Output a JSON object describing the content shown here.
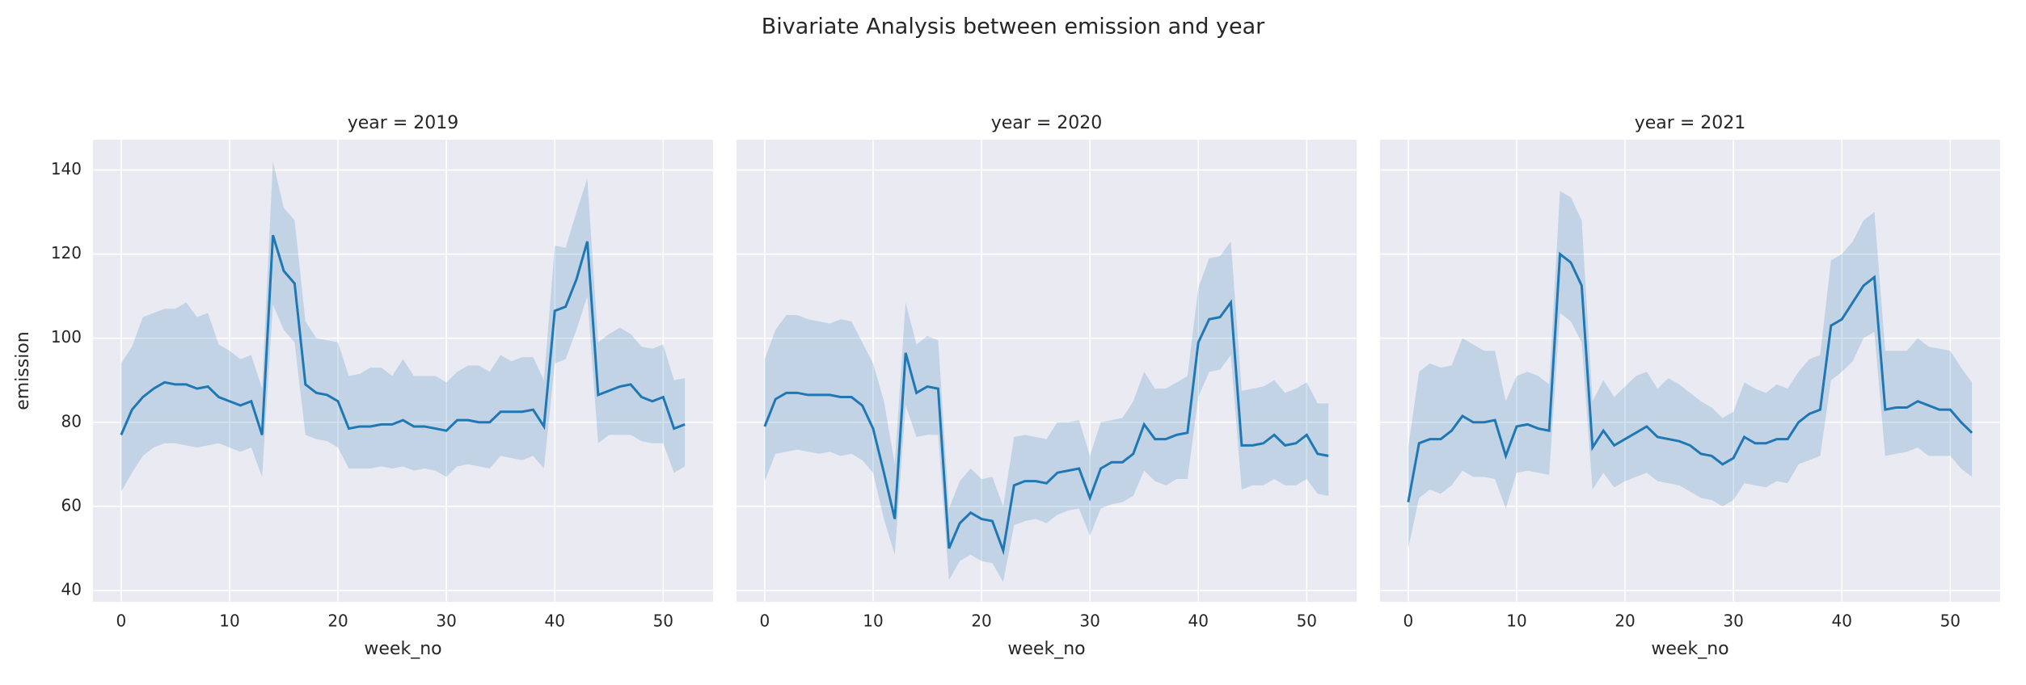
{
  "title": "Bivariate Analysis between emission and year",
  "sharey": true,
  "chart_data": [
    {
      "type": "line",
      "title": "year = 2019",
      "xlabel": "week_no",
      "ylabel": "emission",
      "color": "#1f77b4",
      "grid": true,
      "xlim": [
        -2.6,
        54.6
      ],
      "ylim": [
        37.3,
        147.2
      ],
      "xticks": [
        0,
        10,
        20,
        30,
        40,
        50
      ],
      "yticks": [
        40,
        60,
        80,
        100,
        120,
        140
      ],
      "x": [
        0,
        1,
        2,
        3,
        4,
        5,
        6,
        7,
        8,
        9,
        10,
        11,
        12,
        13,
        14,
        15,
        16,
        17,
        18,
        19,
        20,
        21,
        22,
        23,
        24,
        25,
        26,
        27,
        28,
        29,
        30,
        31,
        32,
        33,
        34,
        35,
        36,
        37,
        38,
        39,
        40,
        41,
        42,
        43,
        44,
        45,
        46,
        47,
        48,
        49,
        50,
        51,
        52
      ],
      "values": [
        77,
        83,
        86,
        88,
        89.5,
        89,
        89,
        88,
        88.5,
        86,
        85,
        84,
        85,
        77,
        124.5,
        116,
        113,
        89,
        87,
        86.5,
        85,
        78.5,
        79,
        79,
        79.5,
        79.5,
        80.5,
        79,
        79,
        78.5,
        78,
        80.5,
        80.5,
        80,
        80,
        82.5,
        82.5,
        82.5,
        83,
        79,
        106.5,
        107.5,
        114,
        123,
        86.5,
        87.5,
        88.5,
        89,
        86,
        85,
        86,
        78.5,
        79.5
      ],
      "lower": [
        63.5,
        68,
        72,
        74,
        75,
        75,
        74.5,
        74,
        74.5,
        75,
        74,
        73,
        74,
        67,
        108,
        102,
        99,
        77,
        76,
        75.5,
        74,
        69,
        69,
        69,
        69.5,
        69,
        69.5,
        68.5,
        69,
        68.5,
        67,
        69.5,
        70,
        69.5,
        69,
        72,
        71.5,
        71,
        72,
        69,
        94,
        95,
        102,
        110,
        75,
        77,
        77,
        77,
        75.5,
        75,
        75,
        68,
        69.5
      ],
      "upper": [
        94,
        98,
        105,
        106,
        107,
        107,
        108.5,
        105,
        106,
        98.5,
        97,
        95,
        96,
        88,
        142,
        131,
        128,
        104,
        100,
        99.5,
        99,
        91,
        91.5,
        93,
        93,
        91,
        95,
        91,
        91,
        91,
        89.5,
        92,
        93.5,
        93.5,
        92,
        96,
        94.5,
        95.5,
        95.5,
        90,
        122,
        121.5,
        130,
        138,
        99,
        101,
        102.5,
        101,
        98,
        97.5,
        98.5,
        90,
        90.5
      ]
    },
    {
      "type": "line",
      "title": "year = 2020",
      "xlabel": "week_no",
      "color": "#1f77b4",
      "grid": true,
      "xlim": [
        -2.6,
        54.6
      ],
      "ylim": [
        37.3,
        147.2
      ],
      "xticks": [
        0,
        10,
        20,
        30,
        40,
        50
      ],
      "yticks": [
        40,
        60,
        80,
        100,
        120,
        140
      ],
      "x": [
        0,
        1,
        2,
        3,
        4,
        5,
        6,
        7,
        8,
        9,
        10,
        11,
        12,
        13,
        14,
        15,
        16,
        17,
        18,
        19,
        20,
        21,
        22,
        23,
        24,
        25,
        26,
        27,
        28,
        29,
        30,
        31,
        32,
        33,
        34,
        35,
        36,
        37,
        38,
        39,
        40,
        41,
        42,
        43,
        44,
        45,
        46,
        47,
        48,
        49,
        50,
        51,
        52
      ],
      "values": [
        79,
        85.5,
        87,
        87,
        86.5,
        86.5,
        86.5,
        86,
        86,
        84,
        78.5,
        68,
        57,
        96.5,
        87,
        88.5,
        88,
        50,
        56,
        58.5,
        57,
        56.5,
        49.5,
        65,
        66,
        66,
        65.5,
        68,
        68.5,
        69,
        62,
        69,
        70.5,
        70.5,
        72.5,
        79.5,
        76,
        76,
        77,
        77.5,
        99,
        104.5,
        105,
        108.5,
        74.5,
        74.5,
        75,
        77,
        74.5,
        75,
        77,
        72.5,
        72
      ],
      "lower": [
        66,
        72.5,
        73,
        73.5,
        73,
        72.5,
        73,
        72,
        72.5,
        71,
        68,
        57,
        48.5,
        84,
        76.5,
        77,
        77,
        42.5,
        47,
        48.5,
        47,
        46.5,
        42,
        55.5,
        56.5,
        57,
        56,
        58,
        59,
        59.5,
        53,
        59.5,
        60.5,
        61,
        62.5,
        68.5,
        66,
        65,
        66.5,
        66.5,
        86,
        92,
        92.5,
        96,
        64,
        65,
        65,
        66.5,
        65,
        65,
        66.5,
        63,
        62.5
      ],
      "upper": [
        95,
        102,
        105.5,
        105.5,
        104.5,
        104,
        103.5,
        104.5,
        104,
        99,
        94,
        85,
        70,
        108.5,
        98.5,
        100.5,
        99.5,
        59.5,
        66,
        69,
        66.5,
        67,
        60,
        76.5,
        77,
        76.5,
        76,
        80,
        80,
        80.5,
        72,
        80,
        80.5,
        81,
        85,
        92,
        88,
        88,
        89.5,
        91,
        112,
        119,
        119.5,
        123,
        87.5,
        88,
        88.5,
        90,
        87,
        88,
        89.5,
        84.5,
        84.5
      ]
    },
    {
      "type": "line",
      "title": "year = 2021",
      "xlabel": "week_no",
      "color": "#1f77b4",
      "grid": true,
      "xlim": [
        -2.6,
        54.6
      ],
      "ylim": [
        37.3,
        147.2
      ],
      "xticks": [
        0,
        10,
        20,
        30,
        40,
        50
      ],
      "yticks": [
        40,
        60,
        80,
        100,
        120,
        140
      ],
      "x": [
        0,
        1,
        2,
        3,
        4,
        5,
        6,
        7,
        8,
        9,
        10,
        11,
        12,
        13,
        14,
        15,
        16,
        17,
        18,
        19,
        20,
        21,
        22,
        23,
        24,
        25,
        26,
        27,
        28,
        29,
        30,
        31,
        32,
        33,
        34,
        35,
        36,
        37,
        38,
        39,
        40,
        41,
        42,
        43,
        44,
        45,
        46,
        47,
        48,
        49,
        50,
        51,
        52
      ],
      "values": [
        61,
        75,
        76,
        76,
        78,
        81.5,
        80,
        80,
        80.5,
        72,
        79,
        79.5,
        78.5,
        78,
        120,
        118,
        112.5,
        74,
        78,
        74.5,
        76,
        77.5,
        79,
        76.5,
        76,
        75.5,
        74.5,
        72.5,
        72,
        70,
        71.5,
        76.5,
        75,
        75,
        76,
        76,
        80,
        82,
        83,
        103,
        104.5,
        108.5,
        112.5,
        114.5,
        83,
        83.5,
        83.5,
        85,
        84,
        83,
        83,
        80,
        77.5
      ],
      "lower": [
        50,
        62,
        64,
        63,
        65,
        68.5,
        67,
        67,
        66.5,
        59.5,
        68,
        68.5,
        68,
        67.5,
        106,
        104,
        99,
        64,
        68,
        64.5,
        66,
        67,
        68,
        66,
        65.5,
        65,
        63.5,
        62,
        61.5,
        60,
        61.5,
        65.5,
        65,
        64.5,
        66,
        65.5,
        70,
        71,
        72,
        90,
        92,
        94.5,
        100,
        101.5,
        72,
        72.5,
        73,
        74,
        72,
        72,
        72,
        69,
        67
      ],
      "upper": [
        74,
        92,
        94,
        93,
        93.5,
        100,
        98.5,
        97,
        97,
        85,
        91,
        92,
        91,
        89,
        135,
        133.5,
        128,
        85,
        90,
        86,
        88.5,
        91,
        92,
        88,
        90.5,
        89,
        87,
        85,
        83.5,
        81,
        82.5,
        89.5,
        88,
        87,
        89,
        88,
        92,
        95,
        96,
        118.5,
        120,
        123,
        128,
        130,
        97,
        97,
        97,
        100,
        98,
        97.5,
        97,
        93,
        89.5
      ]
    }
  ]
}
